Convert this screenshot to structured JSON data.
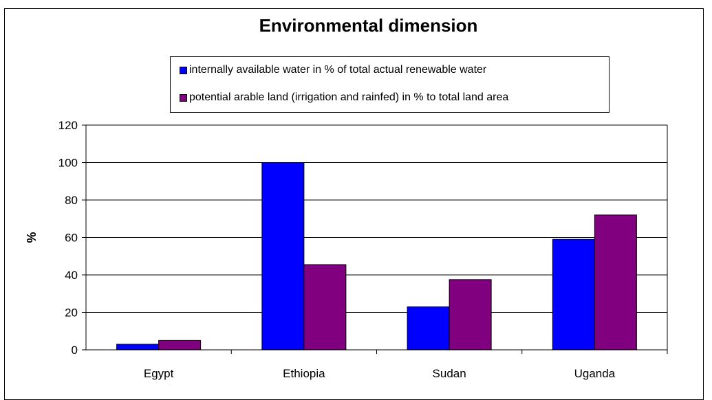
{
  "chart_data": {
    "type": "bar",
    "title": "Environmental dimension",
    "xlabel": "",
    "ylabel": "%",
    "categories": [
      "Egypt",
      "Ethiopia",
      "Sudan",
      "Uganda"
    ],
    "series": [
      {
        "name": "internally available water in % of total actual renewable water",
        "color": "#0000ff",
        "values": [
          3,
          100,
          23,
          59
        ]
      },
      {
        "name": "potential arable land (irrigation and rainfed) in % to total land area",
        "color": "#800080",
        "values": [
          5,
          45.5,
          37.5,
          72
        ]
      }
    ],
    "ylim": [
      0,
      120
    ],
    "yticks": [
      "0",
      "20",
      "40",
      "60",
      "80",
      "100",
      "120"
    ],
    "grid": true,
    "legend_position": "top"
  }
}
